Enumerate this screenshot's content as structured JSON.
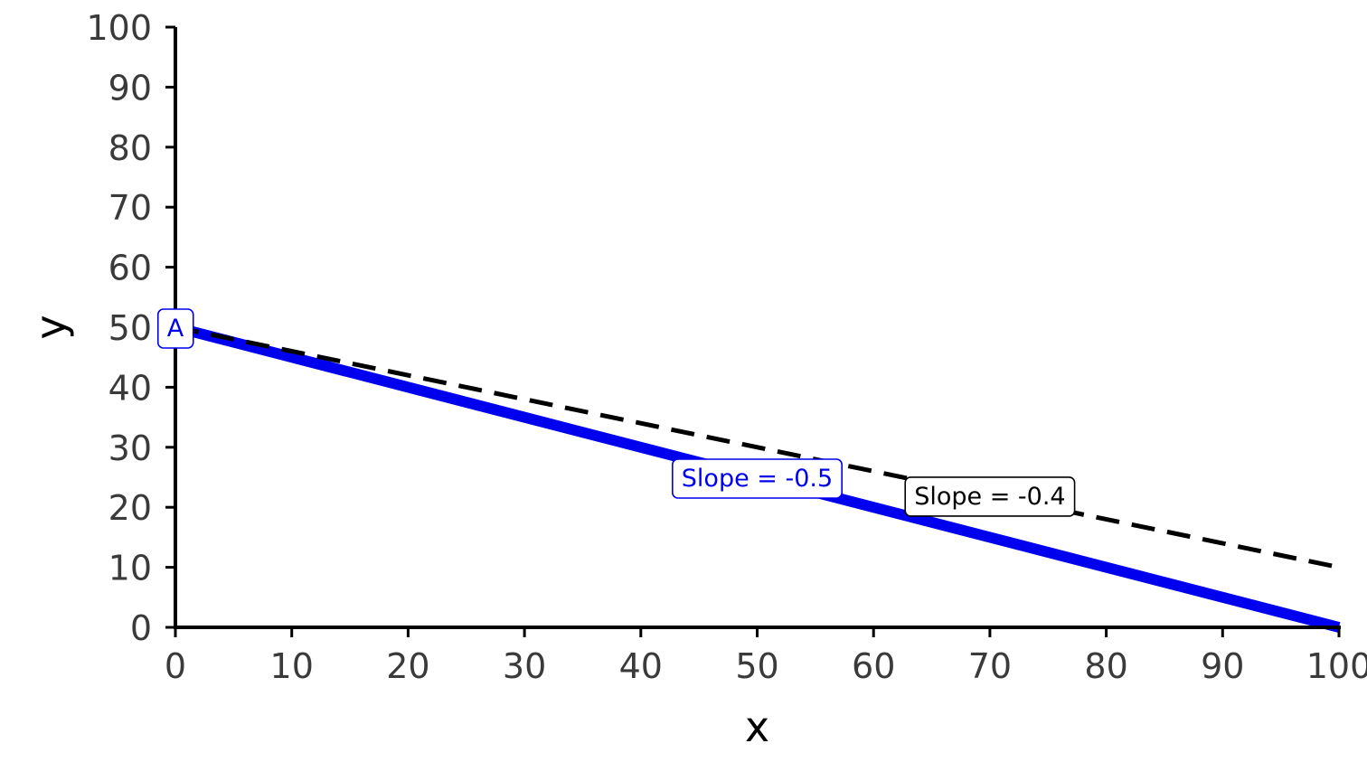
{
  "chart_data": {
    "type": "line",
    "xlabel": "x",
    "ylabel": "y",
    "xlim": [
      0,
      100
    ],
    "ylim": [
      0,
      100
    ],
    "x_ticks": [
      0,
      10,
      20,
      30,
      40,
      50,
      60,
      70,
      80,
      90,
      100
    ],
    "y_ticks": [
      0,
      10,
      20,
      30,
      40,
      50,
      60,
      70,
      80,
      90,
      100
    ],
    "grid": false,
    "series": [
      {
        "x": [
          0,
          100
        ],
        "y": [
          50,
          0
        ],
        "color": "#0000ee",
        "style": "solid"
      },
      {
        "x": [
          0,
          100
        ],
        "y": [
          50,
          10
        ],
        "color": "#000000",
        "style": "dashed"
      }
    ],
    "annotations": [
      {
        "text": "Slope = -0.5",
        "x": 50,
        "y": 25,
        "color": "#0000ee"
      },
      {
        "text": "Slope = -0.4",
        "x": 70,
        "y": 22,
        "color": "#000000"
      },
      {
        "text": "A",
        "x": 0,
        "y": 50,
        "color": "#0000ee"
      }
    ]
  }
}
